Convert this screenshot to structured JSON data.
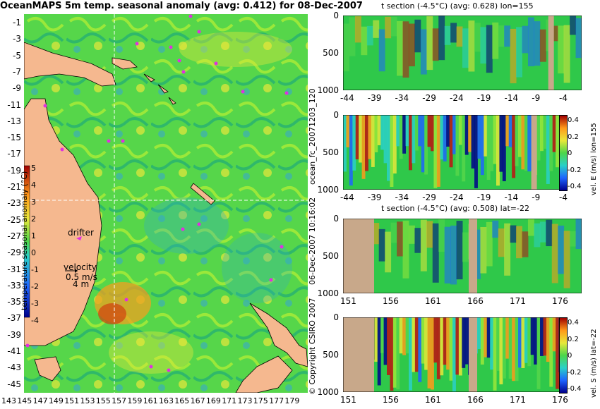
{
  "map": {
    "title": "OceanMAPS 5m temp. seasonal anomaly (avg: 0.412) for 08-Dec-2007",
    "lat_labels": [
      "-1",
      "-3",
      "-5",
      "-7",
      "-9",
      "-11",
      "-13",
      "-15",
      "-17",
      "-19",
      "-21",
      "-23",
      "-25",
      "-27",
      "-29",
      "-31",
      "-33",
      "-35",
      "-37",
      "-39",
      "-41",
      "-43",
      "-45"
    ],
    "lon_labels": [
      "143",
      "145",
      "147",
      "149",
      "151",
      "153",
      "155",
      "157",
      "159",
      "161",
      "163",
      "165",
      "167",
      "169",
      "171",
      "173",
      "175",
      "177",
      "179"
    ],
    "colorbar_label": "temperature seasonal anomaly (°C)",
    "colorbar_ticks": [
      "5",
      "4",
      "3",
      "2",
      "1",
      "0",
      "-1",
      "-2",
      "-3",
      "-4"
    ],
    "drifter_label": "drifter",
    "velocity_label": "velocity",
    "velocity_value": "0.5 m/s",
    "velocity_value2": "4 m",
    "crosshair": {
      "lon": 155,
      "lat": -22
    },
    "land_color": "#f5b88f",
    "marker_color": "#e030e0"
  },
  "side_labels": {
    "left_vertical_1": "ocean_fc_20071203_120",
    "left_vertical_2": "06-Dec-2007 10:16:02",
    "left_vertical_3": "© Copyright CSIRO 2007"
  },
  "panels": [
    {
      "title": "t section (-4.5°C) (avg: 0.628) lon=155",
      "x_ticks": [
        "-44",
        "-39",
        "-34",
        "-29",
        "-24",
        "-19",
        "-14",
        "-9",
        "-4"
      ],
      "y_ticks": [
        "0",
        "500",
        "1000"
      ],
      "right_label": "",
      "colorbar_ticks": []
    },
    {
      "title": "",
      "x_ticks": [
        "-44",
        "-39",
        "-34",
        "-29",
        "-24",
        "-19",
        "-14",
        "-9",
        "-4"
      ],
      "y_ticks": [
        "0",
        "500",
        "1000"
      ],
      "right_label": "vel. E (m/s) lon=155",
      "colorbar_ticks": [
        "0.4",
        "0.2",
        "0",
        "-0.2",
        "-0.4"
      ]
    },
    {
      "title": "t section (-4.5°C) (avg: 0.508) lat=-22",
      "x_ticks": [
        "151",
        "156",
        "161",
        "166",
        "171",
        "176"
      ],
      "y_ticks": [
        "0",
        "500",
        "1000"
      ],
      "right_label": "",
      "colorbar_ticks": []
    },
    {
      "title": "",
      "x_ticks": [
        "151",
        "156",
        "161",
        "166",
        "171",
        "176"
      ],
      "y_ticks": [
        "0",
        "500",
        "1000"
      ],
      "right_label": "vel. S (m/s) lat=-22",
      "colorbar_ticks": [
        "0.4",
        "0.2",
        "0",
        "-0.2",
        "-0.4"
      ]
    }
  ]
}
